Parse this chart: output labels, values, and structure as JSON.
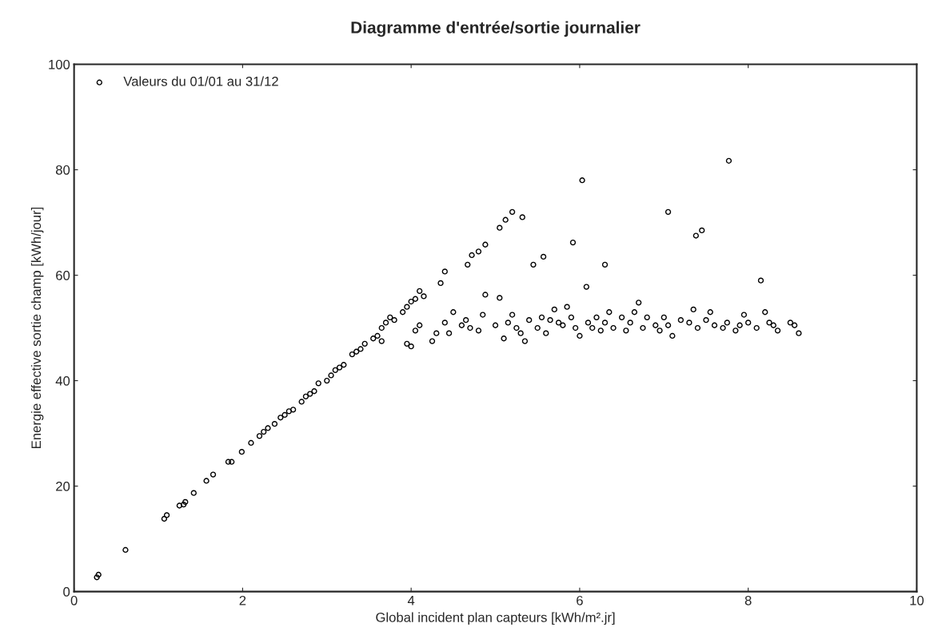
{
  "chart_data": {
    "type": "scatter",
    "title": "Diagramme d'entrée/sortie journalier",
    "xlabel": "Global incident plan capteurs [kWh/m².jr]",
    "ylabel": "Energie effective sortie champ [kWh/jour]",
    "xlim": [
      0,
      10
    ],
    "ylim": [
      0,
      100
    ],
    "xticks": [
      0,
      2,
      4,
      6,
      8,
      10
    ],
    "yticks": [
      0,
      20,
      40,
      60,
      80,
      100
    ],
    "grid": false,
    "legend": "top left",
    "marker": "circle",
    "series": [
      {
        "name": "Valeurs du 01/01 au 31/12",
        "color": "#000000",
        "x": [
          0.27,
          0.29,
          0.61,
          1.07,
          1.1,
          1.25,
          1.3,
          1.32,
          1.42,
          1.57,
          1.65,
          1.83,
          1.87,
          1.99,
          2.1,
          2.2,
          2.25,
          2.3,
          2.38,
          2.45,
          2.5,
          2.55,
          2.6,
          2.7,
          2.75,
          2.8,
          2.85,
          2.9,
          3.0,
          3.05,
          3.1,
          3.15,
          3.2,
          3.3,
          3.35,
          3.4,
          3.45,
          3.55,
          3.6,
          3.65,
          3.7,
          3.75,
          3.8,
          3.9,
          3.95,
          4.0,
          4.05,
          4.1,
          4.15,
          4.35,
          4.4,
          4.67,
          4.72,
          4.8,
          4.88,
          5.05,
          5.12,
          5.2,
          5.32,
          5.45,
          5.57,
          5.92,
          6.03,
          6.08,
          6.3,
          7.05,
          7.38,
          7.45,
          7.77,
          8.15,
          3.65,
          3.95,
          4.0,
          4.05,
          4.1,
          4.25,
          4.3,
          4.4,
          4.45,
          4.5,
          4.6,
          4.65,
          4.7,
          4.8,
          4.85,
          4.88,
          5.0,
          5.05,
          5.1,
          5.15,
          5.2,
          5.25,
          5.3,
          5.35,
          5.4,
          5.5,
          5.55,
          5.6,
          5.65,
          5.7,
          5.75,
          5.8,
          5.85,
          5.9,
          5.95,
          6.0,
          6.1,
          6.15,
          6.2,
          6.25,
          6.3,
          6.35,
          6.4,
          6.5,
          6.55,
          6.6,
          6.65,
          6.7,
          6.75,
          6.8,
          6.9,
          6.95,
          7.0,
          7.05,
          7.1,
          7.2,
          7.3,
          7.35,
          7.4,
          7.5,
          7.55,
          7.6,
          7.7,
          7.75,
          7.85,
          7.9,
          7.95,
          8.0,
          8.1,
          8.2,
          8.25,
          8.3,
          8.35,
          8.5,
          8.55,
          8.6
        ],
        "values": [
          2.7,
          3.2,
          7.9,
          13.8,
          14.5,
          16.3,
          16.5,
          17,
          18.7,
          21,
          22.2,
          24.6,
          24.6,
          26.5,
          28.2,
          29.5,
          30.3,
          31,
          31.8,
          33,
          33.5,
          34.2,
          34.5,
          36,
          37,
          37.5,
          38,
          39.5,
          40,
          41,
          42,
          42.5,
          43,
          45,
          45.5,
          46,
          47,
          48,
          48.5,
          50,
          51,
          52,
          51.5,
          53,
          54,
          55,
          55.5,
          57,
          56,
          58.5,
          60.7,
          62,
          63.8,
          64.5,
          65.8,
          69,
          70.5,
          72,
          71,
          62,
          63.5,
          66.2,
          78,
          57.8,
          62,
          72,
          67.5,
          68.5,
          81.7,
          59,
          47.5,
          47,
          46.5,
          49.5,
          50.5,
          47.5,
          49,
          51,
          49,
          53,
          50.5,
          51.5,
          50,
          49.5,
          52.5,
          56.3,
          50.5,
          55.7,
          48,
          51,
          52.5,
          50,
          49,
          47.5,
          51.5,
          50,
          52,
          49,
          51.5,
          53.5,
          51,
          50.5,
          54,
          52,
          50,
          48.5,
          51,
          50,
          52,
          49.5,
          51,
          53,
          50,
          52,
          49.5,
          51,
          53,
          54.8,
          50,
          52,
          50.5,
          49.5,
          52,
          50.5,
          48.5,
          51.5,
          51,
          53.5,
          50,
          51.5,
          53,
          50.5,
          50,
          51,
          49.5,
          50.5,
          52.5,
          51,
          50,
          53,
          51,
          50.5,
          49.5,
          51,
          50.5,
          49
        ]
      }
    ]
  }
}
